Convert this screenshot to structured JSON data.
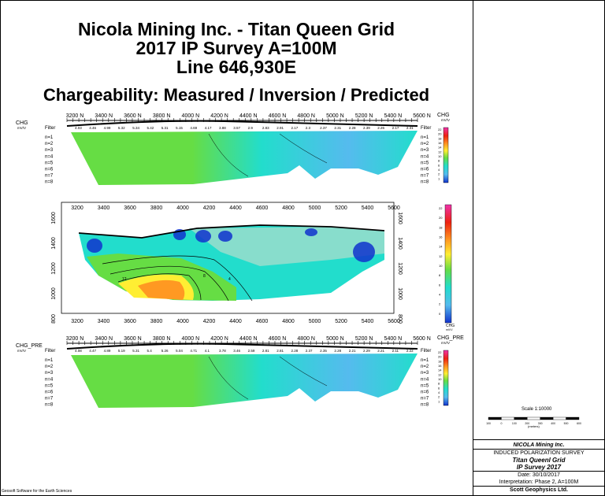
{
  "title": {
    "line1": "Nicola Mining Inc. - Titan Queen Grid",
    "line2": "2017 IP Survey  A=100M",
    "line3": "Line 646,930E",
    "subtitle": "Chargeability: Measured / Inversion / Predicted"
  },
  "colors": {
    "green": "#66dd44",
    "cyan": "#22ddcc",
    "light_blue": "#55bbee",
    "blue": "#1133cc",
    "yellow": "#ffee33",
    "orange": "#ff9922",
    "red": "#ee2211",
    "magenta": "#ee33aa",
    "contour": "#000000"
  },
  "chart_data": [
    {
      "type": "heatmap",
      "name": "measured",
      "left_label": "CHG",
      "left_unit": "mV/V",
      "right_label": "CHG",
      "right_unit": "mV/V",
      "filter_label": "Filter",
      "n_labels": [
        "n=1",
        "n=2",
        "n=3",
        "n=4",
        "n=5",
        "n=6",
        "n=7",
        "n=8"
      ],
      "x_ticks": [
        "3200 N",
        "3400 N",
        "3600 N",
        "3800 N",
        "4000 N",
        "4200 N",
        "4400 N",
        "4600 N",
        "4800 N",
        "5000 N",
        "5200 N",
        "5400 N",
        "5600 N"
      ],
      "filter_values": [
        "4.03",
        "4.46",
        "4.99",
        "5.32",
        "5.34",
        "5.42",
        "5.31",
        "5.15",
        "4.69",
        "4.17",
        "3.88",
        "3.57",
        "2.9",
        "2.83",
        "2.91",
        "2.17",
        "2.3",
        "2.37",
        "2.31",
        "2.28",
        "2.39",
        "2.26",
        "2.17",
        "2.31"
      ],
      "scale_ticks": [
        "22",
        "20",
        "18",
        "16",
        "14",
        "12",
        "10",
        "8",
        "6",
        "4",
        "2",
        "1"
      ]
    },
    {
      "type": "heatmap",
      "name": "inversion",
      "x_ticks": [
        "3200",
        "3400",
        "3600",
        "3800",
        "4000",
        "4200",
        "4400",
        "4600",
        "4800",
        "5000",
        "5200",
        "5400",
        "5600"
      ],
      "y_ticks": [
        "1600",
        "1400",
        "1200",
        "1000",
        "800"
      ],
      "contour_labels": [
        "22",
        "18",
        "16",
        "12",
        "8",
        "4"
      ],
      "scale_ticks": [
        "22",
        "20",
        "18",
        "16",
        "14",
        "12",
        "10",
        "8",
        "6",
        "4",
        "2",
        "0"
      ],
      "scale_label": "CHG",
      "scale_unit": "mV/V"
    },
    {
      "type": "heatmap",
      "name": "predicted",
      "left_label": "CHG_PRE",
      "left_unit": "mV/V",
      "right_label": "CHG_PRE",
      "right_unit": "mV/V",
      "filter_label": "Filter",
      "n_labels": [
        "n=1",
        "n=2",
        "n=3",
        "n=4",
        "n=5",
        "n=6",
        "n=7",
        "n=8"
      ],
      "x_ticks": [
        "3200 N",
        "3400 N",
        "3600 N",
        "3800 N",
        "4000 N",
        "4200 N",
        "4400 N",
        "4600 N",
        "4800 N",
        "5000 N",
        "5200 N",
        "5400 N",
        "5600 N"
      ],
      "filter_values": [
        "4.08",
        "4.47",
        "4.89",
        "5.19",
        "5.31",
        "5.4",
        "5.26",
        "5.04",
        "4.71",
        "4.1",
        "3.78",
        "3.46",
        "2.59",
        "2.81",
        "2.81",
        "2.28",
        "2.37",
        "2.35",
        "2.28",
        "2.21",
        "2.29",
        "2.21",
        "2.11",
        "2.22"
      ],
      "scale_ticks": [
        "22",
        "20",
        "18",
        "16",
        "14",
        "12",
        "10",
        "8",
        "6",
        "4",
        "2",
        "1"
      ]
    }
  ],
  "scale_bar": {
    "label": "Scale 1:10000",
    "ticks": [
      "100",
      "0",
      "100",
      "200",
      "300",
      "400",
      "500",
      "600"
    ],
    "unit": "(meters)"
  },
  "info": {
    "company": "NICOLA Mining Inc.",
    "survey": "INDUCED POLARIZATION SURVEY",
    "grid": "Titan Queenl Grid",
    "year": "IP Survey 2017",
    "date": "Date: 30/10/2017",
    "interp": "Interpretation: Phase 2, A=100M",
    "contractor": "Scott Geophysics Ltd."
  },
  "footer": "Geosoft Software for the Earth Sciences"
}
